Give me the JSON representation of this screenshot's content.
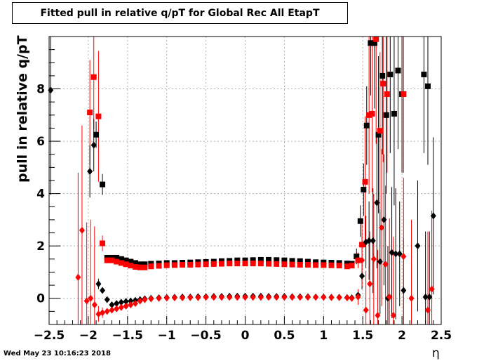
{
  "chart_data": {
    "type": "scatter",
    "title": "Fitted pull in relative q/pT for Global Rec All EtapT",
    "xlabel": "η",
    "ylabel": "pull in relative q/pT",
    "xlim": [
      -2.5,
      2.5
    ],
    "ylim": [
      -1.0,
      10.0
    ],
    "xticks": [
      -2.5,
      -2,
      -1.5,
      -1,
      -0.5,
      0,
      0.5,
      1,
      1.5,
      2,
      2.5
    ],
    "xtick_labels": [
      "−2.5",
      "−2",
      "−1.5",
      "−1",
      "−0.5",
      "0",
      "0.5",
      "1",
      "1.5",
      "2",
      "2.5"
    ],
    "yticks": [
      0,
      2,
      4,
      6,
      8
    ],
    "ytick_labels": [
      "0",
      "2",
      "4",
      "6",
      "8"
    ],
    "grid": true,
    "series": [
      {
        "marker": "square",
        "color": "#000000",
        "x": [
          -1.9,
          -1.82,
          -1.76,
          -1.7,
          -1.64,
          -1.58,
          -1.52,
          -1.46,
          -1.4,
          -1.34,
          -1.28,
          -1.2,
          -1.1,
          -1.0,
          -0.9,
          -0.8,
          -0.7,
          -0.6,
          -0.5,
          -0.4,
          -0.3,
          -0.2,
          -0.1,
          0.0,
          0.1,
          0.2,
          0.3,
          0.4,
          0.5,
          0.6,
          0.7,
          0.8,
          0.9,
          1.0,
          1.1,
          1.2,
          1.3,
          1.36,
          1.42,
          1.47,
          1.51,
          1.55,
          1.6,
          1.65,
          1.7,
          1.75,
          1.8,
          1.85,
          1.9,
          1.95,
          2.0,
          2.28,
          2.33
        ],
        "y": [
          6.25,
          4.35,
          1.55,
          1.55,
          1.55,
          1.5,
          1.45,
          1.4,
          1.35,
          1.3,
          1.3,
          1.32,
          1.33,
          1.35,
          1.35,
          1.36,
          1.37,
          1.38,
          1.39,
          1.4,
          1.42,
          1.43,
          1.45,
          1.45,
          1.46,
          1.47,
          1.47,
          1.46,
          1.45,
          1.43,
          1.42,
          1.4,
          1.38,
          1.37,
          1.36,
          1.35,
          1.33,
          1.32,
          1.6,
          2.95,
          4.15,
          6.6,
          9.75,
          9.75,
          6.25,
          8.5,
          7.0,
          8.55,
          7.05,
          8.7,
          7.8,
          8.55,
          8.1
        ],
        "err": [
          0.5,
          0.4,
          0.1,
          0.05,
          0.05,
          0.05,
          0.04,
          0.04,
          0.04,
          0.04,
          0.04,
          0.04,
          0.04,
          0.04,
          0.04,
          0.04,
          0.04,
          0.04,
          0.04,
          0.04,
          0.04,
          0.04,
          0.04,
          0.04,
          0.04,
          0.04,
          0.04,
          0.04,
          0.04,
          0.04,
          0.04,
          0.04,
          0.04,
          0.04,
          0.04,
          0.04,
          0.04,
          0.06,
          0.3,
          0.6,
          1.0,
          1.5,
          2.0,
          2.5,
          3.0,
          3.0,
          3.0,
          3.0,
          3.5,
          3.0,
          3.0,
          3.0,
          3.0
        ]
      },
      {
        "marker": "square",
        "color": "#ff0000",
        "x": [
          -1.98,
          -1.93,
          -1.87,
          -1.82,
          -1.76,
          -1.7,
          -1.64,
          -1.58,
          -1.52,
          -1.46,
          -1.4,
          -1.34,
          -1.28,
          -1.2,
          -1.1,
          -1.0,
          -0.9,
          -0.8,
          -0.7,
          -0.6,
          -0.5,
          -0.4,
          -0.3,
          -0.2,
          -0.1,
          0.0,
          0.1,
          0.2,
          0.3,
          0.4,
          0.5,
          0.6,
          0.7,
          0.8,
          0.9,
          1.0,
          1.1,
          1.2,
          1.3,
          1.36,
          1.44,
          1.49,
          1.53,
          1.58,
          1.62,
          1.67,
          1.72,
          1.76,
          1.81,
          2.02
        ],
        "y": [
          7.1,
          8.45,
          6.95,
          2.1,
          1.45,
          1.45,
          1.4,
          1.35,
          1.3,
          1.25,
          1.2,
          1.18,
          1.18,
          1.22,
          1.24,
          1.26,
          1.27,
          1.28,
          1.28,
          1.29,
          1.3,
          1.31,
          1.32,
          1.33,
          1.33,
          1.33,
          1.33,
          1.33,
          1.32,
          1.31,
          1.3,
          1.29,
          1.28,
          1.28,
          1.27,
          1.27,
          1.26,
          1.25,
          1.22,
          1.25,
          1.45,
          2.05,
          4.45,
          7.0,
          7.05,
          9.9,
          6.4,
          8.2,
          7.8,
          7.8
        ],
        "err": [
          2.0,
          2.0,
          2.5,
          0.3,
          0.1,
          0.05,
          0.05,
          0.05,
          0.04,
          0.04,
          0.04,
          0.04,
          0.04,
          0.04,
          0.04,
          0.04,
          0.04,
          0.04,
          0.04,
          0.04,
          0.04,
          0.04,
          0.04,
          0.04,
          0.04,
          0.04,
          0.04,
          0.04,
          0.04,
          0.04,
          0.04,
          0.04,
          0.04,
          0.04,
          0.04,
          0.04,
          0.04,
          0.04,
          0.06,
          0.1,
          0.3,
          1.0,
          2.5,
          3.0,
          3.0,
          4.0,
          3.0,
          3.0,
          3.0,
          3.0
        ]
      },
      {
        "marker": "diamond",
        "color": "#000000",
        "x": [
          -2.48,
          -1.98,
          -1.93,
          -1.87,
          -1.82,
          -1.76,
          -1.7,
          -1.64,
          -1.58,
          -1.52,
          -1.46,
          -1.4,
          -1.34,
          -1.28,
          -1.2,
          -1.1,
          -1.0,
          -0.9,
          -0.8,
          -0.7,
          -0.6,
          -0.5,
          -0.4,
          -0.3,
          -0.2,
          -0.1,
          0.0,
          0.1,
          0.2,
          0.3,
          0.4,
          0.5,
          0.6,
          0.7,
          0.8,
          0.9,
          1.0,
          1.1,
          1.2,
          1.3,
          1.36,
          1.44,
          1.49,
          1.54,
          1.58,
          1.63,
          1.68,
          1.72,
          1.77,
          1.82,
          1.87,
          1.92,
          1.97,
          2.02,
          2.2,
          2.3,
          2.35,
          2.4
        ],
        "y": [
          7.95,
          4.85,
          5.85,
          0.55,
          0.3,
          -0.05,
          -0.25,
          -0.2,
          -0.15,
          -0.12,
          -0.1,
          -0.08,
          -0.05,
          -0.02,
          0.0,
          0.02,
          0.03,
          0.04,
          0.05,
          0.05,
          0.06,
          0.06,
          0.07,
          0.07,
          0.08,
          0.08,
          0.08,
          0.08,
          0.08,
          0.07,
          0.07,
          0.07,
          0.06,
          0.06,
          0.06,
          0.05,
          0.05,
          0.04,
          0.04,
          0.03,
          0.02,
          0.12,
          0.85,
          2.15,
          2.2,
          2.2,
          3.65,
          1.4,
          3.0,
          0.0,
          1.75,
          1.7,
          1.7,
          0.3,
          2.0,
          0.05,
          0.05,
          3.15
        ],
        "err": [
          4.0,
          1.0,
          1.0,
          0.2,
          0.1,
          0.05,
          0.04,
          0.04,
          0.04,
          0.03,
          0.03,
          0.03,
          0.03,
          0.03,
          0.03,
          0.03,
          0.03,
          0.03,
          0.03,
          0.03,
          0.03,
          0.03,
          0.03,
          0.03,
          0.03,
          0.03,
          0.03,
          0.03,
          0.03,
          0.03,
          0.03,
          0.03,
          0.03,
          0.03,
          0.03,
          0.03,
          0.03,
          0.03,
          0.03,
          0.03,
          0.05,
          0.2,
          0.5,
          1.0,
          1.5,
          2.0,
          2.5,
          2.0,
          2.5,
          2.0,
          2.5,
          2.5,
          2.0,
          2.0,
          2.5,
          2.5,
          2.5,
          3.0
        ]
      },
      {
        "marker": "diamond",
        "color": "#ff0000",
        "x": [
          -2.13,
          -2.08,
          -2.02,
          -1.97,
          -1.92,
          -1.87,
          -1.82,
          -1.76,
          -1.7,
          -1.64,
          -1.58,
          -1.52,
          -1.46,
          -1.4,
          -1.34,
          -1.28,
          -1.2,
          -1.1,
          -1.0,
          -0.9,
          -0.8,
          -0.7,
          -0.6,
          -0.5,
          -0.4,
          -0.3,
          -0.2,
          -0.1,
          0.0,
          0.1,
          0.2,
          0.3,
          0.4,
          0.5,
          0.6,
          0.7,
          0.8,
          0.9,
          1.0,
          1.1,
          1.2,
          1.3,
          1.36,
          1.44,
          1.49,
          1.54,
          1.59,
          1.64,
          1.69,
          1.74,
          1.79,
          1.84,
          1.89,
          2.02,
          2.12,
          2.33,
          2.38
        ],
        "y": [
          0.8,
          2.6,
          -0.1,
          0.0,
          -0.25,
          -0.6,
          -0.55,
          -0.5,
          -0.45,
          -0.4,
          -0.35,
          -0.3,
          -0.25,
          -0.2,
          -0.1,
          -0.05,
          -0.02,
          0.0,
          0.01,
          0.02,
          0.02,
          0.03,
          0.03,
          0.04,
          0.04,
          0.04,
          0.04,
          0.04,
          0.04,
          0.04,
          0.04,
          0.04,
          0.04,
          0.04,
          0.04,
          0.04,
          0.04,
          0.04,
          0.04,
          0.03,
          0.03,
          0.02,
          0.0,
          0.05,
          1.45,
          -0.45,
          0.55,
          1.5,
          -0.65,
          2.7,
          1.3,
          0.05,
          -0.65,
          1.6,
          0.0,
          -0.45,
          0.35
        ],
        "err": [
          4.0,
          4.0,
          3.0,
          3.0,
          3.0,
          0.3,
          0.2,
          0.1,
          0.05,
          0.04,
          0.04,
          0.03,
          0.03,
          0.03,
          0.03,
          0.03,
          0.03,
          0.03,
          0.03,
          0.03,
          0.03,
          0.03,
          0.03,
          0.03,
          0.03,
          0.03,
          0.03,
          0.03,
          0.03,
          0.03,
          0.03,
          0.03,
          0.03,
          0.03,
          0.03,
          0.03,
          0.03,
          0.03,
          0.03,
          0.03,
          0.03,
          0.03,
          0.05,
          0.3,
          1.0,
          1.5,
          2.0,
          2.5,
          2.5,
          3.0,
          3.0,
          3.0,
          3.0,
          3.0,
          3.0,
          3.0,
          3.0
        ]
      }
    ]
  },
  "timestamp": "Wed May 23 10:16:23 2018"
}
